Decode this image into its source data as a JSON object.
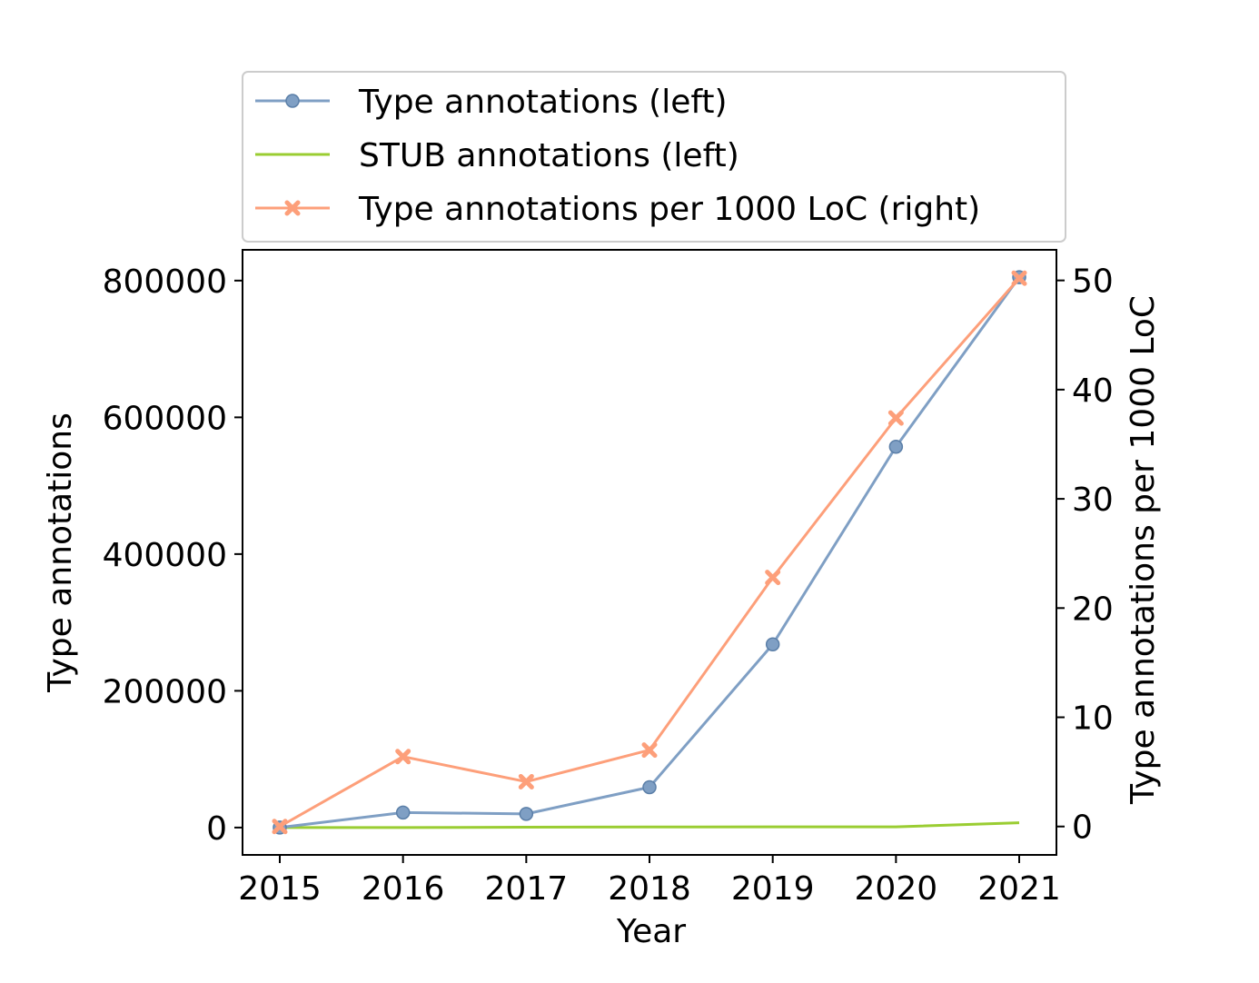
{
  "chart_data": {
    "type": "line",
    "x": [
      2015,
      2016,
      2017,
      2018,
      2019,
      2020,
      2021
    ],
    "xlabel": "Year",
    "ylabel_left": "Type annotations",
    "ylabel_right": "Type annotations per 1000 LoC",
    "ylim_left": [
      -40000,
      845000
    ],
    "ylim_right": [
      -2.6,
      52.8
    ],
    "x_ticks": [
      "2015",
      "2016",
      "2017",
      "2018",
      "2019",
      "2020",
      "2021"
    ],
    "y_ticks_left": [
      "0",
      "200000",
      "400000",
      "600000",
      "800000"
    ],
    "y_ticks_right": [
      "0",
      "10",
      "20",
      "30",
      "40",
      "50"
    ],
    "legend_position": "above plot",
    "grid": false,
    "series": [
      {
        "name": "Type annotations (left)",
        "axis": "left",
        "marker": "circle",
        "color": "#7f9fc4",
        "values": [
          0,
          22000,
          20000,
          59000,
          268000,
          557000,
          805000
        ]
      },
      {
        "name": "STUB annotations (left)",
        "axis": "left",
        "marker": "none",
        "color": "#9acd32",
        "values": [
          0,
          0,
          500,
          800,
          1000,
          1000,
          7000
        ]
      },
      {
        "name": "Type annotations per 1000 LoC (right)",
        "axis": "right",
        "marker": "x",
        "color": "#fd9f7a",
        "values": [
          0,
          6.4,
          4.1,
          7.0,
          22.8,
          37.4,
          50.2
        ]
      }
    ]
  }
}
